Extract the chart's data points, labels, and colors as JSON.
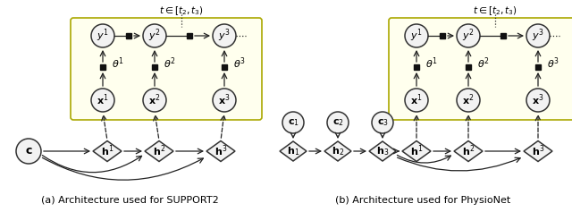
{
  "bg_color": "#ffffff",
  "panel_bg": "#ffffee",
  "panel_border": "#aaa800",
  "node_color": "#f2f2f2",
  "node_edge": "#333333",
  "arrow_color": "#222222",
  "square_color": "#111111",
  "caption_a": "(a) Architecture used for SUPPORT2",
  "caption_b": "(b) Architecture used for PhysioNet",
  "time_label": "$t \\in [t_2, t_3)$",
  "figsize": [
    6.4,
    2.37
  ],
  "dpi": 100
}
